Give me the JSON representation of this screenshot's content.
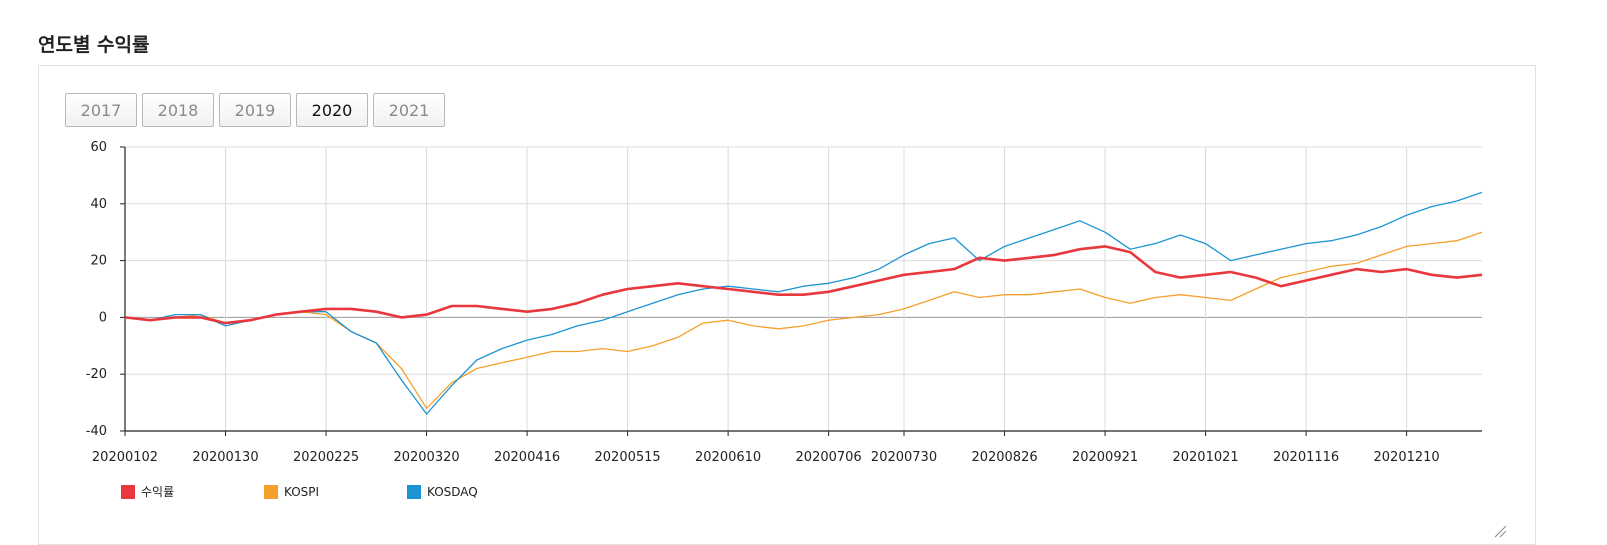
{
  "section": {
    "title": "연도별 수익률"
  },
  "year_tabs": [
    {
      "label": "2017",
      "active": false
    },
    {
      "label": "2018",
      "active": false
    },
    {
      "label": "2019",
      "active": false
    },
    {
      "label": "2020",
      "active": true
    },
    {
      "label": "2021",
      "active": false
    }
  ],
  "icons": {
    "resize_handle": "resize-handle-icon"
  },
  "chart_data": {
    "type": "line",
    "title": "",
    "xlabel": "",
    "ylabel": "",
    "ylim": [
      -40,
      60
    ],
    "yticks": [
      -40,
      -20,
      0,
      20,
      40,
      60
    ],
    "grid": true,
    "legend_position": "bottom-left",
    "x_tick_labels": [
      "20200102",
      "20200130",
      "20200225",
      "20200320",
      "20200416",
      "20200515",
      "20200610",
      "20200706",
      "20200730",
      "20200826",
      "20200921",
      "20201021",
      "20201116",
      "20201210"
    ],
    "x": [
      "20200102",
      "20200109",
      "20200116",
      "20200123",
      "20200130",
      "20200206",
      "20200213",
      "20200220",
      "20200225",
      "20200303",
      "20200310",
      "20200316",
      "20200320",
      "20200327",
      "20200403",
      "20200410",
      "20200416",
      "20200424",
      "20200501",
      "20200508",
      "20200515",
      "20200522",
      "20200529",
      "20200605",
      "20200610",
      "20200617",
      "20200624",
      "20200701",
      "20200706",
      "20200713",
      "20200720",
      "20200730",
      "20200807",
      "20200814",
      "20200821",
      "20200826",
      "20200902",
      "20200909",
      "20200916",
      "20200921",
      "20200928",
      "20201008",
      "20201015",
      "20201021",
      "20201028",
      "20201104",
      "20201111",
      "20201116",
      "20201123",
      "20201130",
      "20201204",
      "20201210",
      "20201217",
      "20201223",
      "20201230"
    ],
    "series": [
      {
        "name": "수익률",
        "color": "#e8383d",
        "values": [
          0,
          -1,
          0,
          0,
          -2,
          -1,
          1,
          2,
          3,
          3,
          2,
          0,
          1,
          4,
          4,
          3,
          2,
          3,
          5,
          8,
          10,
          11,
          12,
          11,
          10,
          9,
          8,
          8,
          9,
          11,
          13,
          15,
          16,
          17,
          21,
          20,
          21,
          22,
          24,
          25,
          23,
          16,
          14,
          15,
          16,
          14,
          11,
          13,
          15,
          17,
          16,
          17,
          15,
          14,
          15
        ]
      },
      {
        "name": "KOSPI",
        "color": "#f5a02c",
        "values": [
          0,
          -1,
          0,
          1,
          -2,
          -1,
          1,
          2,
          1,
          -5,
          -9,
          -18,
          -32,
          -23,
          -18,
          -16,
          -14,
          -12,
          -12,
          -11,
          -12,
          -10,
          -7,
          -2,
          -1,
          -3,
          -4,
          -3,
          -1,
          0,
          1,
          3,
          6,
          9,
          7,
          8,
          8,
          9,
          10,
          7,
          5,
          7,
          8,
          7,
          6,
          10,
          14,
          16,
          18,
          19,
          22,
          25,
          26,
          27,
          30
        ]
      },
      {
        "name": "KOSDAQ",
        "color": "#1d95d2",
        "values": [
          0,
          -1,
          1,
          1,
          -3,
          -1,
          1,
          2,
          2,
          -5,
          -9,
          -22,
          -34,
          -24,
          -15,
          -11,
          -8,
          -6,
          -3,
          -1,
          2,
          5,
          8,
          10,
          11,
          10,
          9,
          11,
          12,
          14,
          17,
          22,
          26,
          28,
          20,
          25,
          28,
          31,
          34,
          30,
          24,
          26,
          29,
          26,
          20,
          22,
          24,
          26,
          27,
          29,
          32,
          36,
          39,
          41,
          44
        ]
      }
    ]
  }
}
